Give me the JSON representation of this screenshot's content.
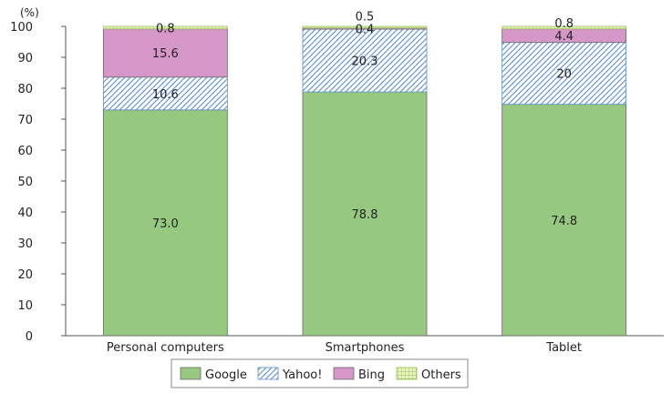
{
  "chart_data": {
    "type": "bar",
    "stacked": true,
    "y_unit": "(%)",
    "ylim": [
      0,
      100
    ],
    "y_ticks": [
      0,
      10,
      20,
      30,
      40,
      50,
      60,
      70,
      80,
      90,
      100
    ],
    "categories": [
      "Personal computers",
      "Smartphones",
      "Tablet"
    ],
    "series": [
      {
        "name": "Google",
        "values": [
          73.0,
          78.8,
          74.8
        ],
        "labels": [
          "73.0",
          "78.8",
          "74.8"
        ],
        "color": "#96c97f"
      },
      {
        "name": "Yahoo!",
        "values": [
          10.6,
          20.3,
          20
        ],
        "labels": [
          "10.6",
          "20.3",
          "20"
        ],
        "color": "#8ab4dc",
        "pattern": "diagonal-hatch"
      },
      {
        "name": "Bing",
        "values": [
          15.6,
          0.4,
          4.4
        ],
        "labels": [
          "15.6",
          "0.4",
          "4.4"
        ],
        "color": "#d596c8"
      },
      {
        "name": "Others",
        "values": [
          0.8,
          0.5,
          0.8
        ],
        "labels": [
          "0.8",
          "0.5",
          "0.8"
        ],
        "color": "#c9de8c",
        "pattern": "grid"
      }
    ],
    "legend_position": "bottom",
    "grid": false
  }
}
